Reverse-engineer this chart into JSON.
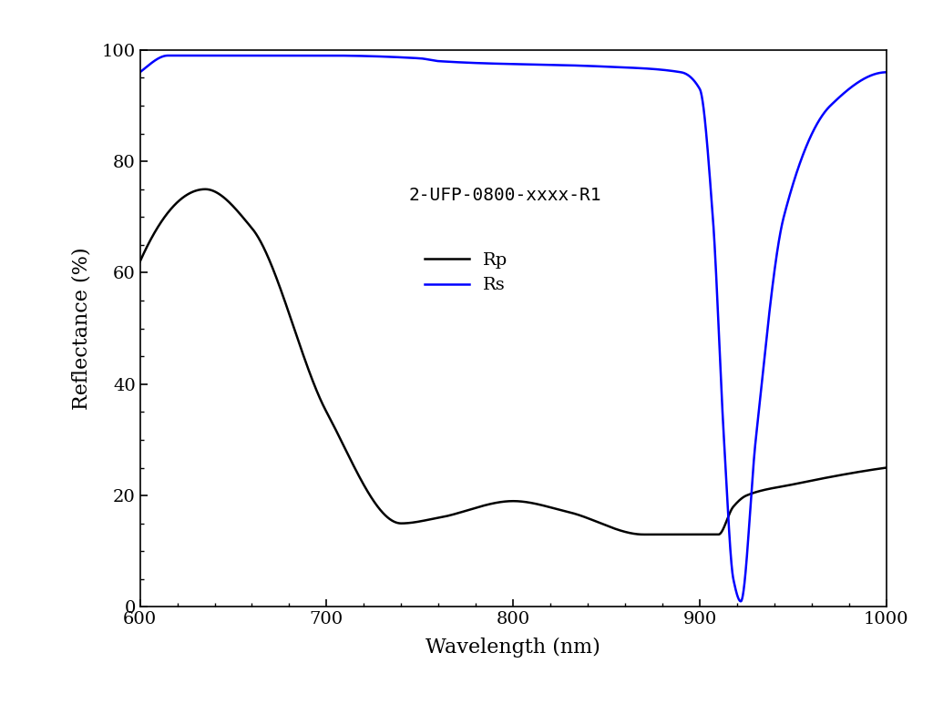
{
  "title": "",
  "xlabel": "Wavelength (nm)",
  "ylabel": "Reflectance (%)",
  "xlim": [
    600,
    1000
  ],
  "ylim": [
    0,
    100
  ],
  "xticks": [
    600,
    700,
    800,
    900,
    1000
  ],
  "yticks": [
    0,
    20,
    40,
    60,
    80,
    100
  ],
  "annotation": "2-UFP-0800-xxxx-R1",
  "legend_labels": [
    "Rp",
    "Rs"
  ],
  "rp_color": "#000000",
  "rs_color": "#0000ff",
  "background_color": "#ffffff",
  "linewidth": 1.8,
  "rp_keypoints_x": [
    600,
    635,
    660,
    700,
    740,
    760,
    800,
    830,
    870,
    910,
    918,
    925,
    950,
    1000
  ],
  "rp_keypoints_y": [
    62,
    75,
    68,
    35,
    15,
    16,
    19,
    17,
    13,
    13,
    18,
    20,
    22,
    25
  ],
  "rs_keypoints_x": [
    600,
    615,
    650,
    700,
    750,
    760,
    850,
    890,
    900,
    907,
    913,
    918,
    922,
    930,
    945,
    970,
    1000
  ],
  "rs_keypoints_y": [
    96,
    99,
    99,
    99,
    98.5,
    98,
    97,
    96,
    93,
    70,
    30,
    5,
    1,
    30,
    70,
    90,
    96
  ]
}
